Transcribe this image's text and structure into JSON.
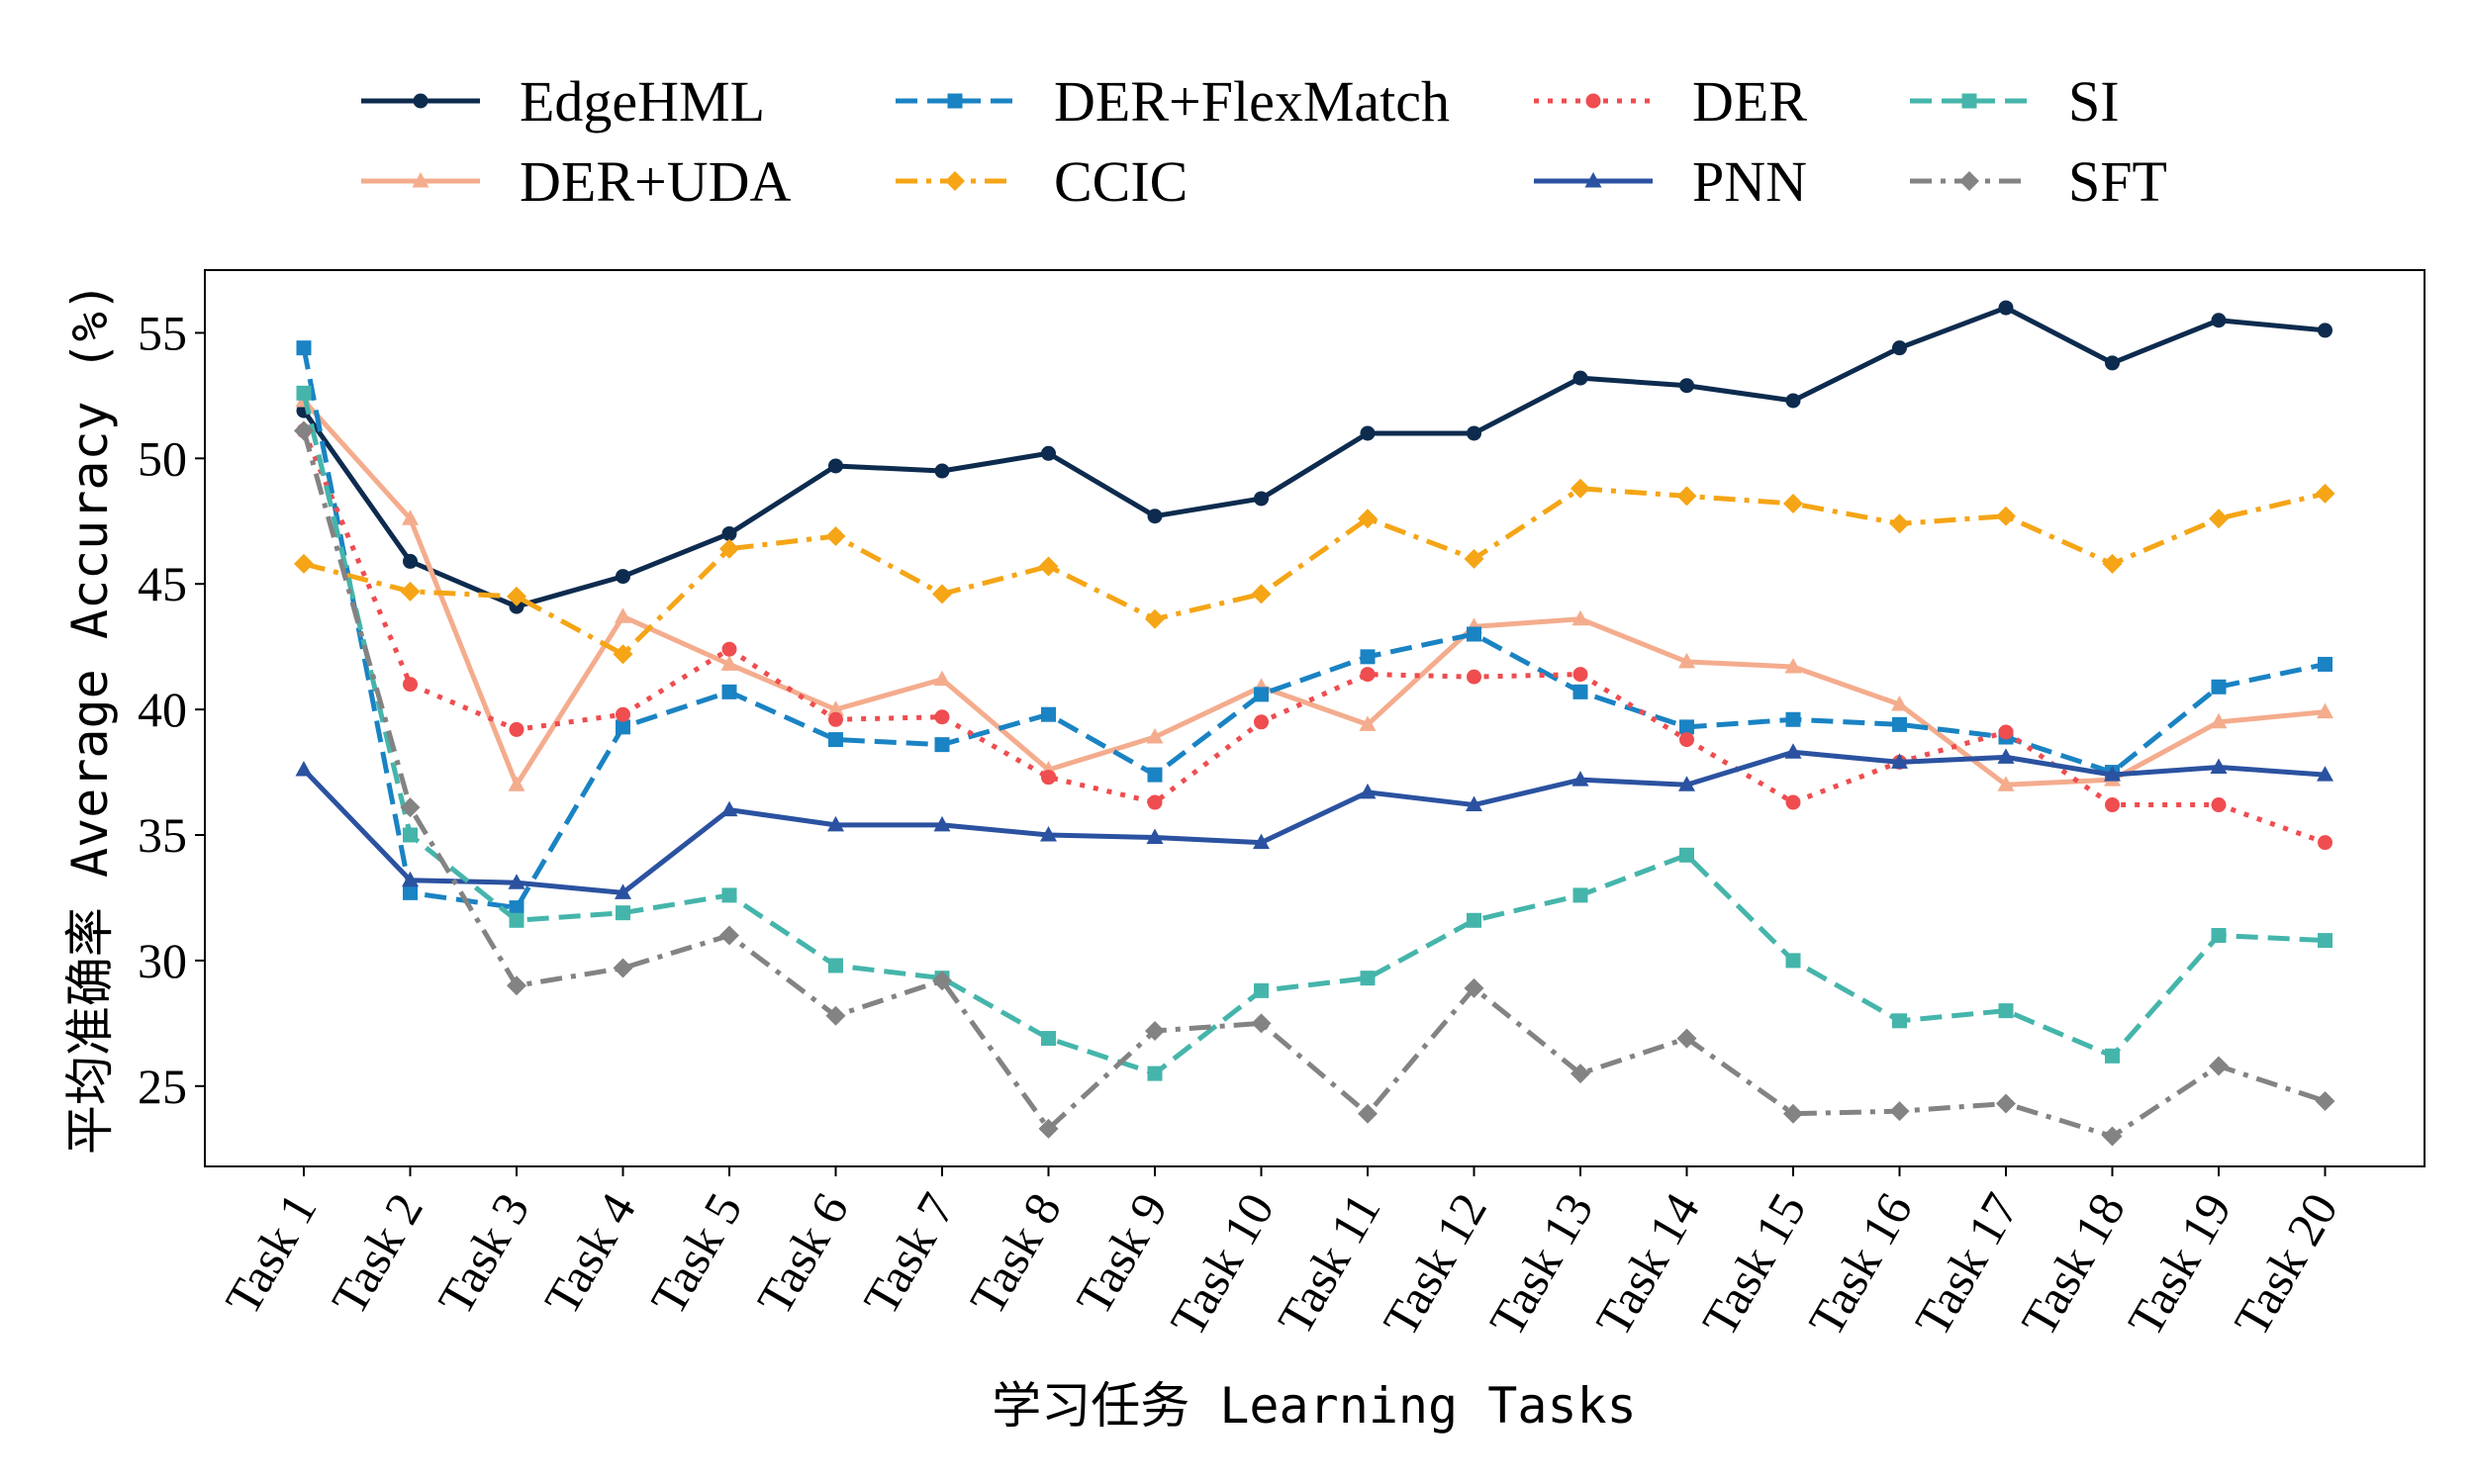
{
  "chart_data": {
    "type": "line",
    "title": "",
    "xlabel": "学习任务 Learning Tasks",
    "ylabel": "平均准确率 Average Accuracy (%)",
    "ylim": [
      21.8,
      57.5
    ],
    "yticks": [
      25,
      30,
      35,
      40,
      45,
      50,
      55
    ],
    "grid": false,
    "legend_placement": "top",
    "categories": [
      "Task 1",
      "Task 2",
      "Task 3",
      "Task 4",
      "Task 5",
      "Task 6",
      "Task 7",
      "Task 8",
      "Task 9",
      "Task 10",
      "Task 11",
      "Task 12",
      "Task 13",
      "Task 14",
      "Task 15",
      "Task 16",
      "Task 17",
      "Task 18",
      "Task 19",
      "Task 20"
    ],
    "series": [
      {
        "name": "EdgeHML",
        "color": "#0d2b4e",
        "dash": "solid",
        "marker": "circle",
        "values": [
          51.9,
          45.9,
          44.1,
          45.3,
          47.0,
          49.7,
          49.5,
          50.2,
          47.7,
          48.4,
          51.0,
          51.0,
          53.2,
          52.9,
          52.3,
          54.4,
          56.0,
          53.8,
          55.5,
          55.1
        ]
      },
      {
        "name": "DER+UDA",
        "color": "#f4ac8d",
        "dash": "solid",
        "marker": "triangle",
        "values": [
          52.3,
          47.6,
          37.0,
          43.7,
          41.8,
          40.0,
          41.2,
          37.6,
          38.9,
          40.9,
          39.4,
          43.3,
          43.6,
          41.9,
          41.7,
          40.2,
          37.0,
          37.2,
          39.5,
          39.9
        ]
      },
      {
        "name": "DER+FlexMatch",
        "color": "#1a83c3",
        "dash": "dashed",
        "marker": "square",
        "values": [
          54.4,
          32.7,
          32.1,
          39.3,
          40.7,
          38.8,
          38.6,
          39.8,
          37.4,
          40.6,
          42.1,
          43.0,
          40.7,
          39.3,
          39.6,
          39.4,
          38.9,
          37.5,
          40.9,
          41.8
        ]
      },
      {
        "name": "CCIC",
        "color": "#f5a516",
        "dash": "dashdot",
        "marker": "diamond",
        "values": [
          45.8,
          44.7,
          44.5,
          42.2,
          46.4,
          46.9,
          44.6,
          45.7,
          43.6,
          44.6,
          47.6,
          46.0,
          48.8,
          48.5,
          48.2,
          47.4,
          47.7,
          45.8,
          47.6,
          48.6
        ]
      },
      {
        "name": "DER",
        "color": "#ef4d4f",
        "dash": "dotted",
        "marker": "circle",
        "values": [
          51.1,
          41.0,
          39.2,
          39.8,
          42.4,
          39.6,
          39.7,
          37.3,
          36.3,
          39.5,
          41.4,
          41.3,
          41.4,
          38.8,
          36.3,
          37.9,
          39.1,
          36.2,
          36.2,
          34.7
        ]
      },
      {
        "name": "PNN",
        "color": "#2b52a0",
        "dash": "solid",
        "marker": "triangle",
        "values": [
          37.6,
          33.2,
          33.1,
          32.7,
          36.0,
          35.4,
          35.4,
          35.0,
          34.9,
          34.7,
          36.7,
          36.2,
          37.2,
          37.0,
          38.3,
          37.9,
          38.1,
          37.4,
          37.7,
          37.4
        ]
      },
      {
        "name": "SI",
        "color": "#45b5ab",
        "dash": "dashed",
        "marker": "square",
        "values": [
          52.6,
          35.0,
          31.6,
          31.9,
          32.6,
          29.8,
          29.3,
          26.9,
          25.5,
          28.8,
          29.3,
          31.6,
          32.6,
          34.2,
          30.0,
          27.6,
          28.0,
          26.2,
          31.0,
          30.8
        ]
      },
      {
        "name": "SFT",
        "color": "#838383",
        "dash": "dashdot",
        "marker": "diamond",
        "values": [
          51.1,
          36.1,
          29.0,
          29.7,
          31.0,
          27.8,
          29.2,
          23.3,
          27.2,
          27.5,
          23.9,
          28.9,
          25.5,
          26.9,
          23.9,
          24.0,
          24.3,
          23.0,
          25.8,
          24.4
        ]
      }
    ]
  }
}
